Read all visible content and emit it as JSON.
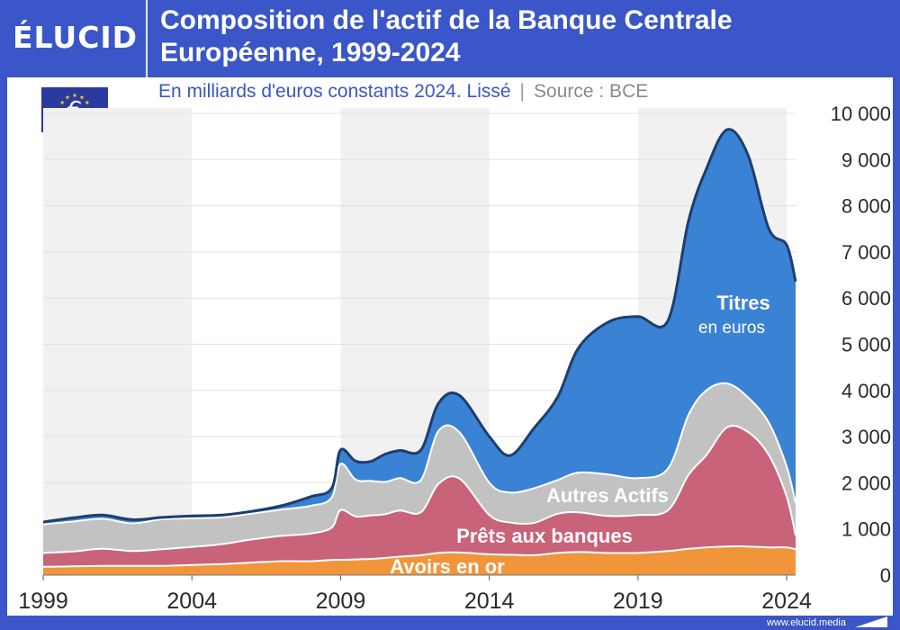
{
  "brand": {
    "logo": "ÉLUCID",
    "website": "www.elucid.media"
  },
  "header": {
    "title": "Composition de l'actif de la Banque Centrale Européenne, 1999-2024",
    "subtitle": "En milliards d'euros constants 2024. Lissé",
    "separator": "|",
    "source": "Source : BCE"
  },
  "flag": {
    "icon": "eu-flag-euro-icon",
    "glyph": "€",
    "color": "#2b3a9e",
    "star_color": "#f5d000"
  },
  "chart_data": {
    "type": "area",
    "stacked": true,
    "x": [
      1999,
      2000,
      2001,
      2002,
      2003,
      2004,
      2005,
      2006,
      2007,
      2008,
      2008.7,
      2009,
      2009.5,
      2010,
      2010.5,
      2011,
      2011.7,
      2012.3,
      2013,
      2014,
      2014.7,
      2015.5,
      2016.3,
      2017,
      2018,
      2019,
      2020,
      2020.7,
      2021.3,
      2022,
      2022.7,
      2023.4,
      2024,
      2024.3
    ],
    "series": [
      {
        "name": "Avoirs en or",
        "color": "#f0953a",
        "values": [
          180,
          190,
          200,
          200,
          200,
          220,
          240,
          270,
          300,
          300,
          330,
          330,
          340,
          350,
          370,
          400,
          430,
          480,
          490,
          450,
          440,
          430,
          480,
          500,
          480,
          480,
          520,
          570,
          600,
          620,
          620,
          600,
          600,
          560
        ]
      },
      {
        "name": "Prêts aux banques",
        "color": "#c9637a",
        "values": [
          300,
          320,
          370,
          320,
          360,
          390,
          430,
          500,
          550,
          600,
          700,
          1080,
          930,
          940,
          950,
          1000,
          930,
          1500,
          1600,
          850,
          700,
          700,
          850,
          860,
          800,
          820,
          880,
          1600,
          2000,
          2580,
          2480,
          2000,
          1100,
          300
        ]
      },
      {
        "name": "Autres Actifs",
        "color": "#c2c2c2",
        "values": [
          620,
          650,
          650,
          600,
          650,
          620,
          580,
          560,
          570,
          600,
          650,
          1000,
          800,
          750,
          700,
          700,
          700,
          1150,
          1000,
          700,
          650,
          750,
          730,
          860,
          900,
          800,
          900,
          1300,
          1400,
          950,
          750,
          700,
          650,
          700
        ]
      },
      {
        "name": "Titres en euros",
        "color": "#3a82d4",
        "values": [
          50,
          80,
          80,
          80,
          40,
          50,
          50,
          50,
          80,
          200,
          200,
          300,
          400,
          420,
          600,
          600,
          650,
          600,
          800,
          1000,
          800,
          1300,
          1800,
          2700,
          3300,
          3500,
          3200,
          4200,
          4800,
          5500,
          5250,
          4200,
          4800,
          4800
        ]
      }
    ],
    "total_line_color": "#1e3e6e",
    "labels": {
      "Titres en euros": [
        "Titres",
        "en euros"
      ],
      "Autres Actifs": "Autres Actifs",
      "Prêts aux banques": "Prêts aux banques",
      "Avoirs en or": "Avoirs en or"
    },
    "xticks": [
      "1999",
      "2004",
      "2009",
      "2014",
      "2019",
      "2024"
    ],
    "yticks": [
      "0",
      "1 000",
      "2 000",
      "3 000",
      "4 000",
      "5 000",
      "6 000",
      "7 000",
      "8 000",
      "9 000",
      "10 000"
    ],
    "xlim": [
      1999,
      2024.3
    ],
    "ylim": [
      0,
      10000
    ],
    "grid": true,
    "legend": "inline labels"
  }
}
